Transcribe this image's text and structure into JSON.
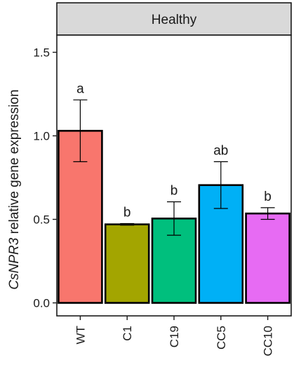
{
  "chart_data": {
    "type": "bar",
    "panel_title": "Healthy",
    "ylabel_italic": "CsNPR3",
    "ylabel_rest": " relative gene expression",
    "xlabel": "",
    "ylim": [
      0,
      1.6
    ],
    "yticks": [
      "0.0",
      "0.5",
      "1.0",
      "1.5"
    ],
    "ytick_values": [
      0.0,
      0.5,
      1.0,
      1.5
    ],
    "categories": [
      "WT",
      "C1",
      "C19",
      "CC5",
      "CC10"
    ],
    "values": [
      1.03,
      0.47,
      0.505,
      0.705,
      0.535
    ],
    "error_low": [
      0.845,
      0.465,
      0.405,
      0.565,
      0.5
    ],
    "error_high": [
      1.215,
      0.475,
      0.605,
      0.845,
      0.57
    ],
    "significance": [
      "a",
      "b",
      "b",
      "ab",
      "b"
    ],
    "colors": [
      "#F8766D",
      "#A3A500",
      "#00BF7D",
      "#00B0F6",
      "#E76BF3"
    ],
    "grid": false,
    "legend": "none"
  }
}
